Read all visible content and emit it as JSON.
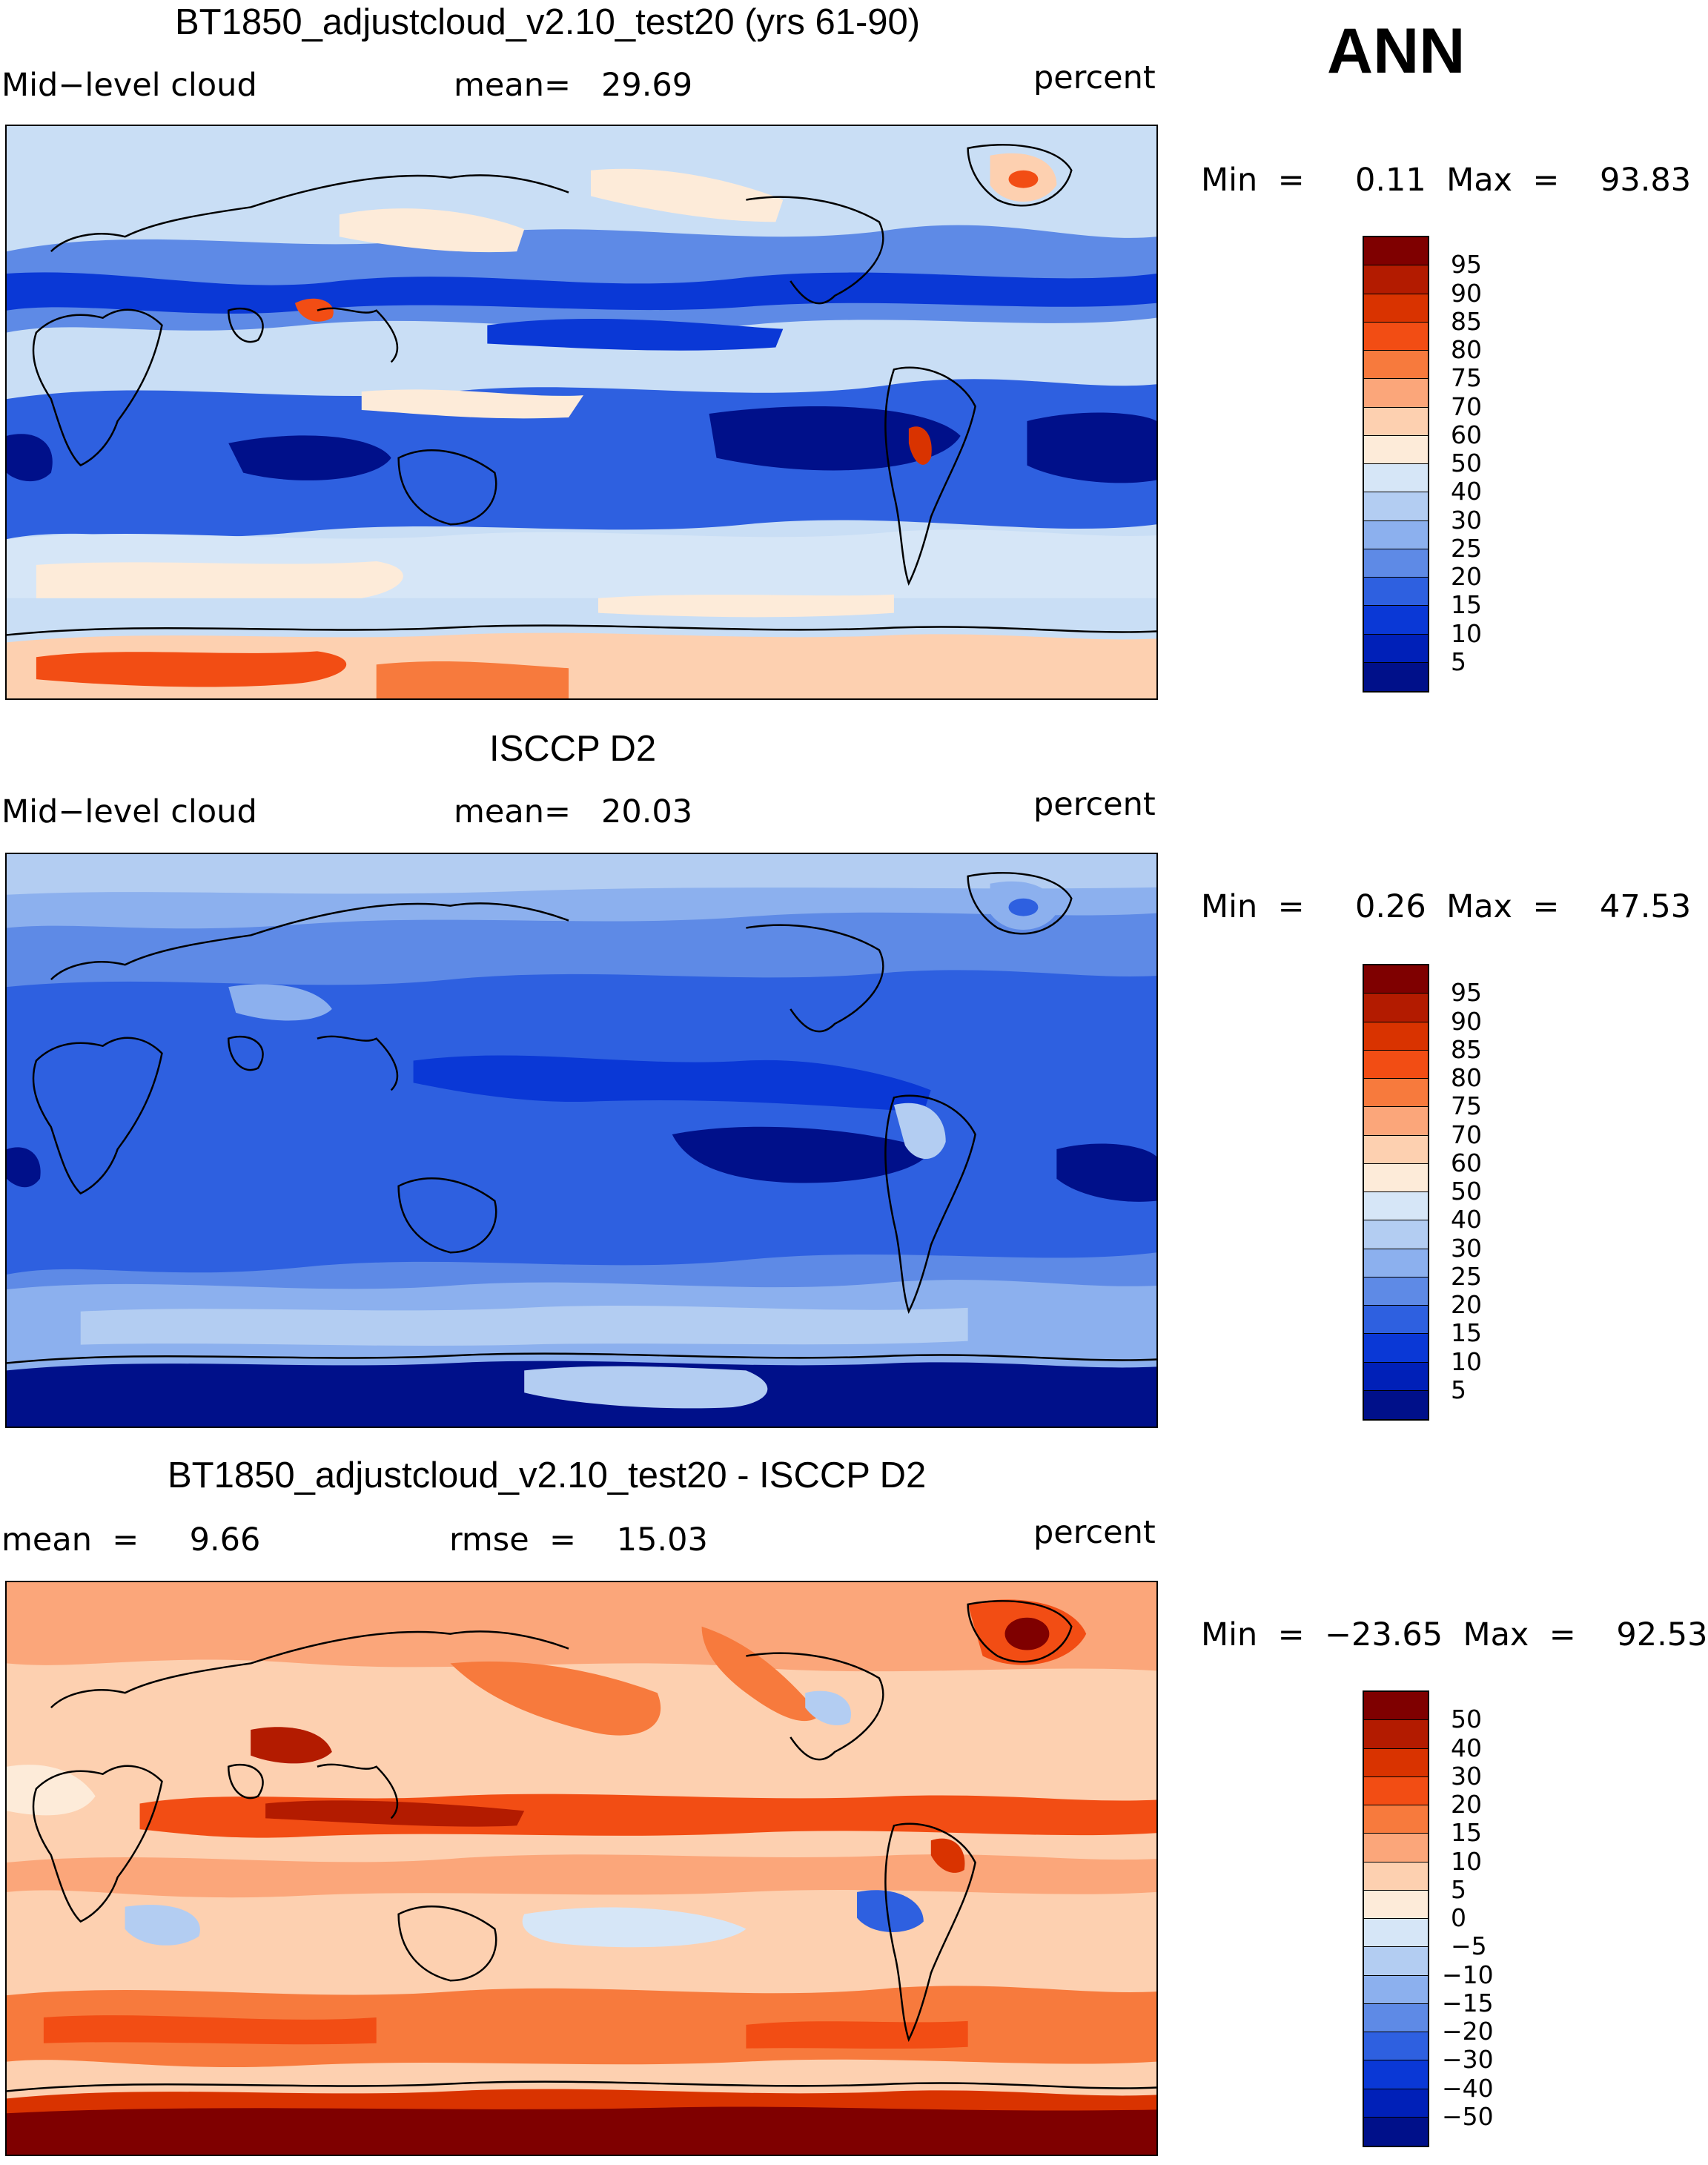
{
  "season": "ANN",
  "panels": [
    {
      "title": "BT1850_adjustcloud_v2.10_test20 (yrs 61-90)",
      "left_label": "Mid−level cloud",
      "center_label": "mean=   29.69",
      "right_label": "percent",
      "minmax": "Min  =     0.11  Max  =    93.83",
      "colorbar": {
        "labels": [
          "95",
          "90",
          "85",
          "80",
          "75",
          "70",
          "60",
          "50",
          "40",
          "30",
          "25",
          "20",
          "15",
          "10",
          "5"
        ],
        "colors": [
          "#7f0000",
          "#b31b00",
          "#d93300",
          "#f24d14",
          "#f77a3d",
          "#fba67a",
          "#fdd0b0",
          "#fdebd9",
          "#d6e6f7",
          "#b3cdf2",
          "#8cb0ee",
          "#5e8ae6",
          "#2e60e0",
          "#0a38d6",
          "#0020b8",
          "#00108a"
        ]
      }
    },
    {
      "title": "ISCCP D2",
      "left_label": "Mid−level cloud",
      "center_label": "mean=   20.03",
      "right_label": "percent",
      "minmax": "Min  =     0.26  Max  =    47.53",
      "colorbar": {
        "labels": [
          "95",
          "90",
          "85",
          "80",
          "75",
          "70",
          "60",
          "50",
          "40",
          "30",
          "25",
          "20",
          "15",
          "10",
          "5"
        ],
        "colors": [
          "#7f0000",
          "#b31b00",
          "#d93300",
          "#f24d14",
          "#f77a3d",
          "#fba67a",
          "#fdd0b0",
          "#fdebd9",
          "#d6e6f7",
          "#b3cdf2",
          "#8cb0ee",
          "#5e8ae6",
          "#2e60e0",
          "#0a38d6",
          "#0020b8",
          "#00108a"
        ]
      }
    },
    {
      "title": "BT1850_adjustcloud_v2.10_test20 - ISCCP D2",
      "left_label": "mean  =     9.66",
      "center_label": "rmse  =    15.03",
      "right_label": "percent",
      "minmax": "Min  =  −23.65  Max  =    92.53",
      "colorbar": {
        "labels": [
          "50",
          "40",
          "30",
          "20",
          "15",
          "10",
          "5",
          "0",
          "−5",
          "−10",
          "−15",
          "−20",
          "−30",
          "−40",
          "−50"
        ],
        "colors": [
          "#7f0000",
          "#b31b00",
          "#d93300",
          "#f24d14",
          "#f77a3d",
          "#fba67a",
          "#fdd0b0",
          "#fdebd9",
          "#d6e6f7",
          "#b3cdf2",
          "#8cb0ee",
          "#5e8ae6",
          "#2e60e0",
          "#0a38d6",
          "#0020b8",
          "#00108a"
        ]
      }
    }
  ]
}
